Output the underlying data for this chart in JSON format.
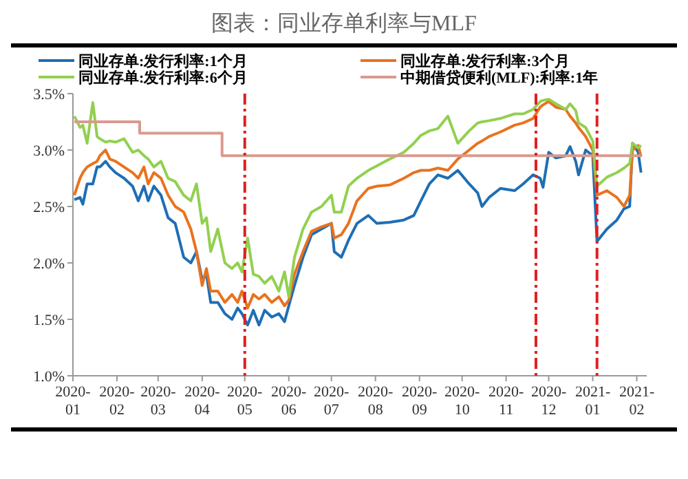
{
  "chart_data": {
    "type": "line",
    "title": "图表：同业存单利率与MLF",
    "x": [
      "2020-01-02",
      "2020-01-06",
      "2020-01-08",
      "2020-01-11",
      "2020-01-15",
      "2020-01-18",
      "2020-01-20",
      "2020-01-24",
      "2020-01-27",
      "2020-01-31",
      "2020-02-06",
      "2020-02-12",
      "2020-02-16",
      "2020-02-20",
      "2020-02-23",
      "2020-02-27",
      "2020-03-03",
      "2020-03-08",
      "2020-03-13",
      "2020-03-19",
      "2020-03-24",
      "2020-03-28",
      "2020-04-01",
      "2020-04-04",
      "2020-04-07",
      "2020-04-12",
      "2020-04-17",
      "2020-04-22",
      "2020-04-26",
      "2020-04-29",
      "2020-05-03",
      "2020-05-07",
      "2020-05-11",
      "2020-05-15",
      "2020-05-20",
      "2020-05-25",
      "2020-05-29",
      "2020-06-01",
      "2020-06-05",
      "2020-06-11",
      "2020-06-17",
      "2020-06-24",
      "2020-07-01",
      "2020-07-03",
      "2020-07-08",
      "2020-07-13",
      "2020-07-19",
      "2020-07-27",
      "2020-08-02",
      "2020-08-11",
      "2020-08-21",
      "2020-08-28",
      "2020-09-02",
      "2020-09-08",
      "2020-09-14",
      "2020-09-21",
      "2020-09-28",
      "2020-10-06",
      "2020-10-12",
      "2020-10-15",
      "2020-10-20",
      "2020-10-28",
      "2020-11-07",
      "2020-11-13",
      "2020-11-20",
      "2020-11-25",
      "2020-11-27",
      "2020-12-01",
      "2020-12-06",
      "2020-12-13",
      "2020-12-16",
      "2020-12-20",
      "2020-12-22",
      "2020-12-27",
      "2021-01-01",
      "2021-01-04",
      "2021-01-11",
      "2021-01-18",
      "2021-01-23",
      "2021-01-27",
      "2021-01-29",
      "2021-02-02",
      "2021-02-04"
    ],
    "series": [
      {
        "name": "同业存单:发行利率:1个月",
        "color": "#1f6eb5",
        "values": [
          2.56,
          2.58,
          2.52,
          2.7,
          2.7,
          2.85,
          2.85,
          2.9,
          2.85,
          2.8,
          2.75,
          2.68,
          2.55,
          2.68,
          2.55,
          2.68,
          2.6,
          2.4,
          2.35,
          2.05,
          2.0,
          2.1,
          1.85,
          1.9,
          1.65,
          1.65,
          1.55,
          1.5,
          1.6,
          1.55,
          1.45,
          1.58,
          1.45,
          1.58,
          1.52,
          1.55,
          1.48,
          1.62,
          1.8,
          2.05,
          2.25,
          2.3,
          2.35,
          2.1,
          2.05,
          2.2,
          2.35,
          2.42,
          2.35,
          2.36,
          2.38,
          2.42,
          2.55,
          2.7,
          2.78,
          2.75,
          2.82,
          2.7,
          2.62,
          2.5,
          2.58,
          2.66,
          2.64,
          2.7,
          2.78,
          2.75,
          2.67,
          2.98,
          2.93,
          2.95,
          3.03,
          2.9,
          2.78,
          3.0,
          2.95,
          2.19,
          2.3,
          2.38,
          2.48,
          2.5,
          3.06,
          2.98,
          2.8
        ]
      },
      {
        "name": "同业存单:发行利率:3个月",
        "color": "#e9721e",
        "values": [
          2.6,
          2.75,
          2.8,
          2.85,
          2.88,
          2.9,
          2.95,
          3.0,
          2.92,
          2.9,
          2.85,
          2.8,
          2.75,
          2.85,
          2.7,
          2.8,
          2.75,
          2.6,
          2.5,
          2.45,
          2.3,
          2.1,
          1.8,
          1.95,
          1.75,
          1.75,
          1.65,
          1.72,
          1.65,
          1.75,
          1.6,
          1.72,
          1.68,
          1.72,
          1.65,
          1.7,
          1.62,
          1.67,
          1.9,
          2.1,
          2.28,
          2.32,
          2.35,
          2.22,
          2.25,
          2.35,
          2.55,
          2.66,
          2.68,
          2.69,
          2.75,
          2.8,
          2.82,
          2.82,
          2.84,
          2.82,
          2.92,
          3.0,
          3.06,
          3.08,
          3.12,
          3.16,
          3.22,
          3.24,
          3.28,
          3.38,
          3.4,
          3.43,
          3.38,
          3.36,
          3.3,
          3.24,
          3.2,
          3.12,
          3.0,
          2.6,
          2.64,
          2.58,
          2.5,
          2.6,
          3.0,
          3.04,
          2.94
        ]
      },
      {
        "name": "同业存单:发行利率:6个月",
        "color": "#92d050",
        "values": [
          3.3,
          3.2,
          3.22,
          3.06,
          3.42,
          3.12,
          3.1,
          3.07,
          3.08,
          3.07,
          3.1,
          2.98,
          3.0,
          2.95,
          2.92,
          2.85,
          2.9,
          2.75,
          2.72,
          2.6,
          2.55,
          2.7,
          2.35,
          2.4,
          2.1,
          2.3,
          2.0,
          1.95,
          2.0,
          1.92,
          2.22,
          1.9,
          1.88,
          1.82,
          1.88,
          1.75,
          1.92,
          1.7,
          2.05,
          2.3,
          2.45,
          2.5,
          2.6,
          2.45,
          2.45,
          2.68,
          2.75,
          2.82,
          2.86,
          2.92,
          2.98,
          3.06,
          3.13,
          3.17,
          3.19,
          3.3,
          3.06,
          3.17,
          3.24,
          3.25,
          3.26,
          3.28,
          3.32,
          3.32,
          3.36,
          3.43,
          3.44,
          3.45,
          3.41,
          3.36,
          3.41,
          3.35,
          3.24,
          3.2,
          3.08,
          2.68,
          2.76,
          2.8,
          2.84,
          2.88,
          3.06,
          3.02,
          3.04
        ]
      },
      {
        "name": "中期借贷便利(MLF):利率:1年",
        "color": "#d99a8f",
        "type": "step",
        "x": [
          "2020-01-02",
          "2020-02-17",
          "2020-04-15",
          "2021-02-04"
        ],
        "values": [
          3.25,
          3.15,
          2.95,
          2.95
        ]
      }
    ],
    "xlim": [
      "2020-01-01",
      "2021-02-08"
    ],
    "xticks": [
      {
        "value": "2020-01-01",
        "label": "2020-01"
      },
      {
        "value": "2020-02-01",
        "label": "2020-02"
      },
      {
        "value": "2020-03-01",
        "label": "2020-03"
      },
      {
        "value": "2020-04-01",
        "label": "2020-04"
      },
      {
        "value": "2020-05-01",
        "label": "2020-05"
      },
      {
        "value": "2020-06-01",
        "label": "2020-06"
      },
      {
        "value": "2020-07-01",
        "label": "2020-07"
      },
      {
        "value": "2020-08-01",
        "label": "2020-08"
      },
      {
        "value": "2020-09-01",
        "label": "2020-09"
      },
      {
        "value": "2020-10-01",
        "label": "2020-10"
      },
      {
        "value": "2020-11-01",
        "label": "2020-11"
      },
      {
        "value": "2020-12-01",
        "label": "2020-12"
      },
      {
        "value": "2021-01-01",
        "label": "2021-01"
      },
      {
        "value": "2021-02-01",
        "label": "2021-02"
      }
    ],
    "ylim": [
      1.0,
      3.5
    ],
    "yticks": [
      {
        "value": 1.0,
        "label": "1.0%"
      },
      {
        "value": 1.5,
        "label": "1.5%"
      },
      {
        "value": 2.0,
        "label": "2.0%"
      },
      {
        "value": 2.5,
        "label": "2.5%"
      },
      {
        "value": 3.0,
        "label": "3.0%"
      },
      {
        "value": 3.5,
        "label": "3.5%"
      }
    ],
    "ref_lines": [
      {
        "axis": "x",
        "value": "2020-05-01",
        "color": "#e02020",
        "line_style": "dashdot"
      },
      {
        "axis": "x",
        "value": "2020-11-22",
        "color": "#e02020",
        "line_style": "dashdot"
      },
      {
        "axis": "x",
        "value": "2021-01-04",
        "color": "#e02020",
        "line_style": "dashdot"
      }
    ],
    "legend": "top",
    "grid": false,
    "marker": "none",
    "line_style": "solid"
  }
}
